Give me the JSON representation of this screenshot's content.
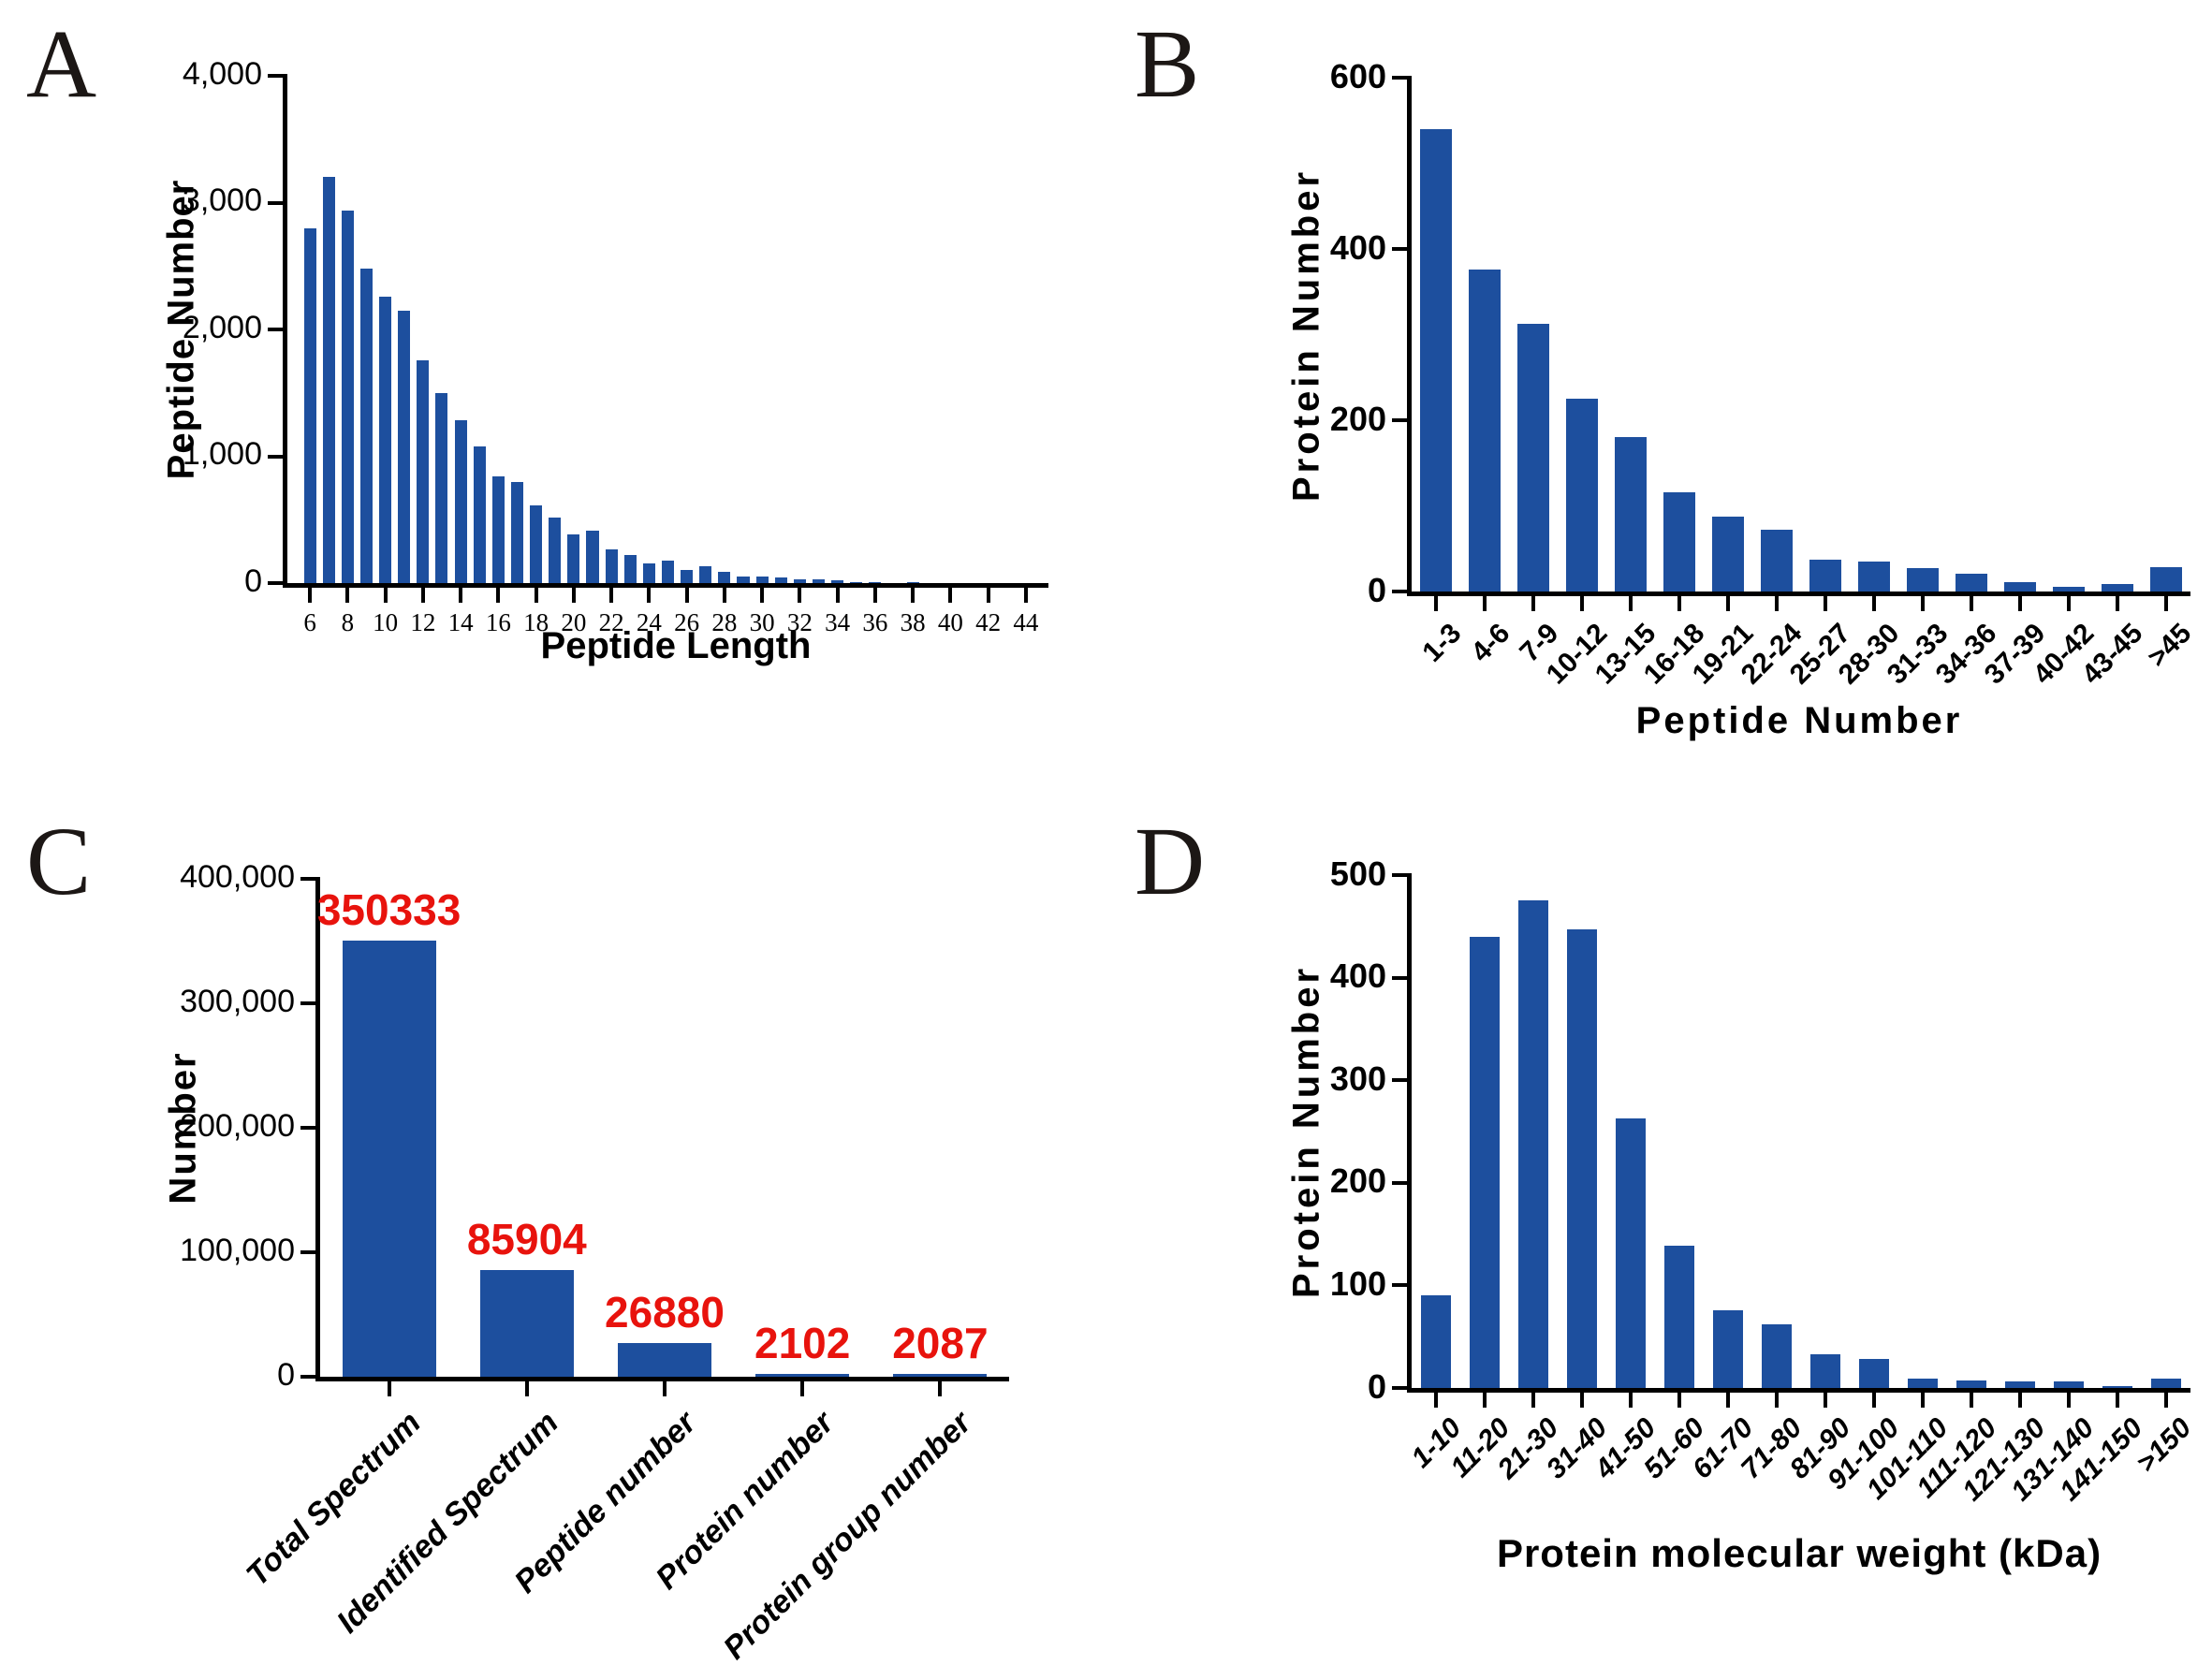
{
  "figure": {
    "background": "#ffffff",
    "bar_color": "#1d4f9e",
    "axis_color": "#000000",
    "text_color": "#000000",
    "value_label_color": "#e8130d",
    "panel_letters": [
      "A",
      "B",
      "C",
      "D"
    ]
  },
  "chart_data": [
    {
      "id": "A",
      "panel_letter": "A",
      "type": "bar",
      "title": "",
      "xlabel": "Peptide Length",
      "ylabel": "Peptide Number",
      "ylim": [
        0,
        4000
      ],
      "ytick_step": 1000,
      "ytick_labels": [
        "0",
        "1,000",
        "2,000",
        "3,000",
        "4,000"
      ],
      "xtick_labels_shown": [
        "6",
        "8",
        "10",
        "12",
        "14",
        "16",
        "18",
        "20",
        "22",
        "24",
        "26",
        "28",
        "30",
        "32",
        "34",
        "36",
        "38",
        "40",
        "42",
        "44"
      ],
      "categories": [
        "6",
        "7",
        "8",
        "9",
        "10",
        "11",
        "12",
        "13",
        "14",
        "15",
        "16",
        "17",
        "18",
        "19",
        "20",
        "21",
        "22",
        "23",
        "24",
        "25",
        "26",
        "27",
        "28",
        "29",
        "30",
        "31",
        "32",
        "33",
        "34",
        "35",
        "36",
        "37",
        "38",
        "39",
        "40",
        "41",
        "42",
        "43",
        "44"
      ],
      "values": [
        2800,
        3200,
        2940,
        2480,
        2260,
        2150,
        1760,
        1500,
        1285,
        1080,
        845,
        795,
        610,
        515,
        385,
        410,
        265,
        225,
        155,
        175,
        100,
        135,
        85,
        55,
        55,
        42,
        33,
        26,
        20,
        11,
        6,
        0,
        9,
        0,
        0,
        0,
        0,
        0,
        0
      ],
      "grid": false,
      "legend": null
    },
    {
      "id": "B",
      "panel_letter": "B",
      "type": "bar",
      "title": "",
      "xlabel": "Peptide Number",
      "ylabel": "Protein Number",
      "ylim": [
        0,
        600
      ],
      "ytick_step": 200,
      "ytick_labels": [
        "0",
        "200",
        "400",
        "600"
      ],
      "categories": [
        "1-3",
        "4-6",
        "7-9",
        "10-12",
        "13-15",
        "16-18",
        "19-21",
        "22-24",
        "25-27",
        "28-30",
        "31-33",
        "34-36",
        "37-39",
        "40-42",
        "43-45",
        ">45"
      ],
      "values": [
        540,
        376,
        313,
        225,
        180,
        116,
        87,
        72,
        37,
        35,
        27,
        21,
        11,
        5,
        9,
        28
      ],
      "grid": false,
      "legend": null
    },
    {
      "id": "C",
      "panel_letter": "C",
      "type": "bar",
      "title": "",
      "xlabel": "",
      "ylabel": "Number",
      "ylim": [
        0,
        400000
      ],
      "ytick_step": 100000,
      "ytick_labels": [
        "0",
        "100,000",
        "200,000",
        "300,000",
        "400,000"
      ],
      "categories": [
        "Total Spectrum",
        "Identified Spectrum",
        "Peptide number",
        "Protein number",
        "Protein group number"
      ],
      "values": [
        350333,
        85904,
        26880,
        2102,
        2087
      ],
      "show_value_labels": true,
      "value_labels": [
        "350333",
        "85904",
        "26880",
        "2102",
        "2087"
      ],
      "grid": false,
      "legend": null
    },
    {
      "id": "D",
      "panel_letter": "D",
      "type": "bar",
      "title": "",
      "xlabel": "Protein molecular weight (kDa)",
      "ylabel": "Protein Number",
      "ylim": [
        0,
        500
      ],
      "ytick_step": 100,
      "ytick_labels": [
        "0",
        "100",
        "200",
        "300",
        "400",
        "500"
      ],
      "categories": [
        "1-10",
        "11-20",
        "21-30",
        "31-40",
        "41-50",
        "51-60",
        "61-70",
        "71-80",
        "81-90",
        "91-100",
        "101-110",
        "111-120",
        "121-130",
        "131-140",
        "141-150",
        ">150"
      ],
      "values": [
        90,
        440,
        475,
        447,
        263,
        139,
        76,
        62,
        33,
        28,
        9,
        7,
        6,
        6,
        2,
        9
      ],
      "grid": false,
      "legend": null
    }
  ]
}
